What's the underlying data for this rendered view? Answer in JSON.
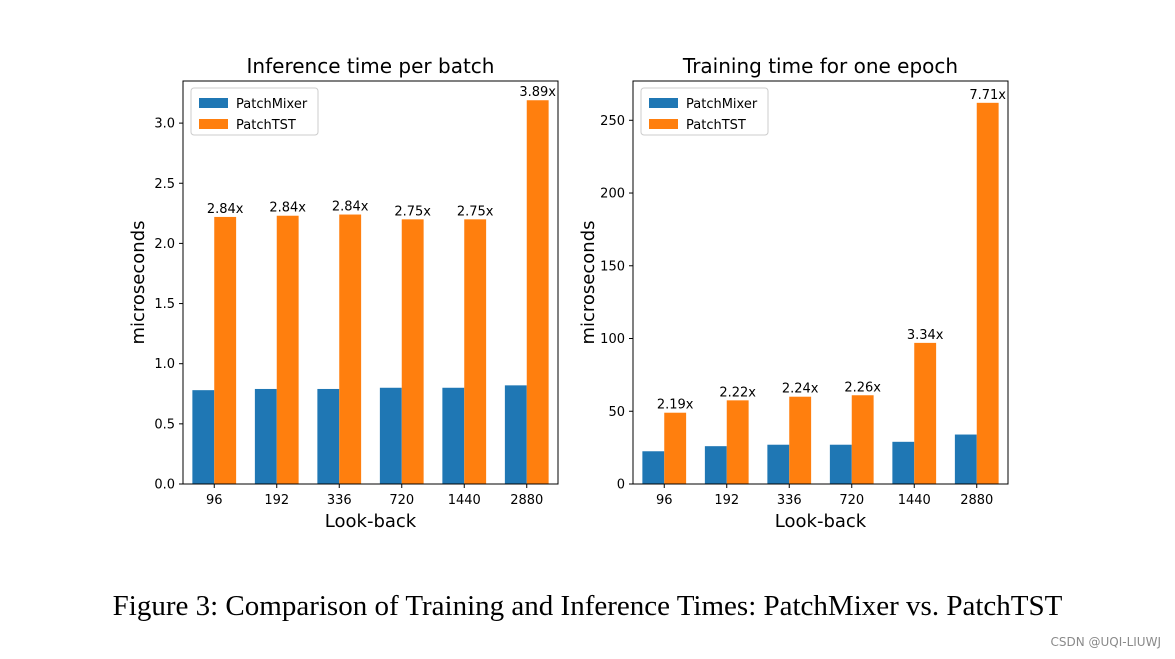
{
  "caption": "Figure 3: Comparison of Training and Inference Times: PatchMixer vs. PatchTST",
  "watermark": "CSDN @UQI-LIUWJ",
  "colors": {
    "PatchMixer": "#1f77b4",
    "PatchTST": "#ff7f0e"
  },
  "chart_data": [
    {
      "type": "bar",
      "title": "Inference time per batch",
      "xlabel": "Look-back",
      "ylabel": "microseconds",
      "categories": [
        "96",
        "192",
        "336",
        "720",
        "1440",
        "2880"
      ],
      "ylim": [
        0,
        3.35
      ],
      "yticks": [
        "0.0",
        "0.5",
        "1.0",
        "1.5",
        "2.0",
        "2.5",
        "3.0"
      ],
      "series": [
        {
          "name": "PatchMixer",
          "values": [
            0.78,
            0.79,
            0.79,
            0.8,
            0.8,
            0.82
          ]
        },
        {
          "name": "PatchTST",
          "values": [
            2.22,
            2.23,
            2.24,
            2.2,
            2.2,
            3.19
          ]
        }
      ],
      "annotations": [
        "2.84x",
        "2.84x",
        "2.84x",
        "2.75x",
        "2.75x",
        "3.89x"
      ],
      "legend": "top-left",
      "grid": false
    },
    {
      "type": "bar",
      "title": "Training time for one epoch",
      "xlabel": "Look-back",
      "ylabel": "microseconds",
      "categories": [
        "96",
        "192",
        "336",
        "720",
        "1440",
        "2880"
      ],
      "ylim": [
        0,
        277
      ],
      "yticks": [
        "0",
        "50",
        "100",
        "150",
        "200",
        "250"
      ],
      "series": [
        {
          "name": "PatchMixer",
          "values": [
            22.5,
            26,
            27,
            27,
            29,
            34
          ]
        },
        {
          "name": "PatchTST",
          "values": [
            49,
            57.5,
            60,
            61,
            97,
            262
          ]
        }
      ],
      "annotations": [
        "2.19x",
        "2.22x",
        "2.24x",
        "2.26x",
        "3.34x",
        "7.71x"
      ],
      "legend": "top-left",
      "grid": false
    }
  ]
}
